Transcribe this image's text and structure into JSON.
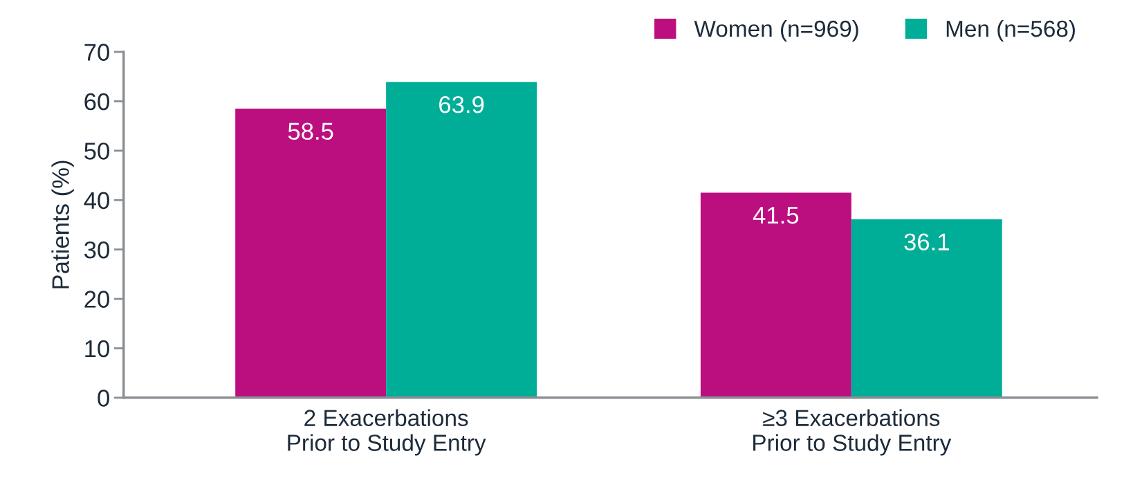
{
  "chart_data": {
    "type": "bar",
    "ylabel": "Patients (%)",
    "categories": [
      "2 Exacerbations\nPrior to Study Entry",
      "≥3 Exacerbations\nPrior to Study Entry"
    ],
    "series": [
      {
        "name": "Women (n=969)",
        "color": "#bc0f7f",
        "values": [
          58.5,
          41.5
        ]
      },
      {
        "name": "Men (n=568)",
        "color": "#00ae98",
        "values": [
          63.9,
          36.1
        ]
      }
    ],
    "ylim": [
      0,
      70
    ],
    "yticks": [
      0,
      10,
      20,
      30,
      40,
      50,
      60,
      70
    ],
    "data_labels": true,
    "legend": "top right",
    "grid": false
  }
}
